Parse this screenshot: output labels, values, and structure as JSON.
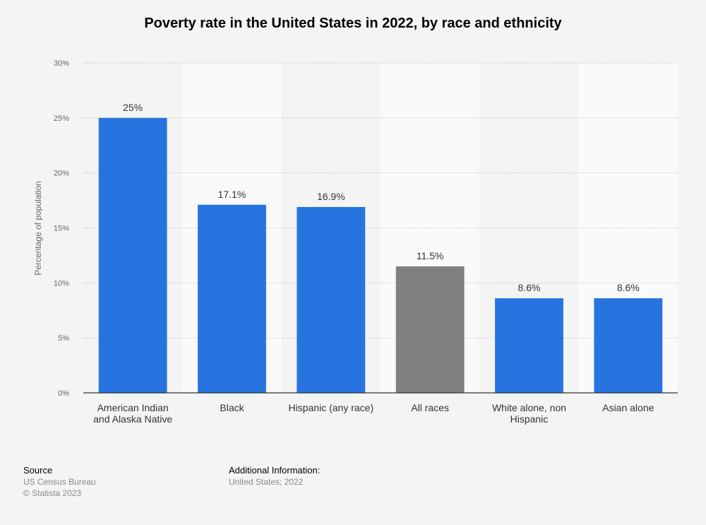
{
  "chart_data": {
    "type": "bar",
    "title": "Poverty rate in the United States in 2022, by race and ethnicity",
    "xlabel": "",
    "ylabel": "Percentage of population",
    "ylim": [
      0,
      30
    ],
    "yticks": [
      "0%",
      "5%",
      "10%",
      "15%",
      "20%",
      "25%",
      "30%"
    ],
    "categories": [
      [
        "American Indian",
        "and Alaska Native"
      ],
      [
        "Black"
      ],
      [
        "Hispanic (any race)"
      ],
      [
        "All races"
      ],
      [
        "White alone, non",
        "Hispanic"
      ],
      [
        "Asian alone"
      ]
    ],
    "values": [
      25,
      17.1,
      16.9,
      11.5,
      8.6,
      8.6
    ],
    "value_labels": [
      "25%",
      "17.1%",
      "16.9%",
      "11.5%",
      "8.6%",
      "8.6%"
    ],
    "colors": {
      "bar": "#2774e0",
      "highlight": "#808080",
      "highlight_category": "All races",
      "grid": "#c8c8c8",
      "axis": "#333333"
    },
    "grid": true,
    "legend": "none"
  },
  "footer": {
    "source_heading": "Source",
    "source_lines": [
      "US Census Bureau",
      "© Statista 2023"
    ],
    "info_heading": "Additional Information:",
    "info_lines": [
      "United States; 2022"
    ]
  }
}
